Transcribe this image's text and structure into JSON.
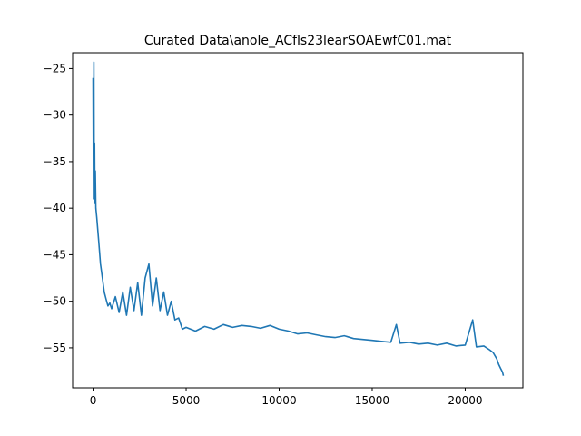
{
  "chart_data": {
    "type": "line",
    "title": "Curated Data\\anole_ACfls23learSOAEwfC01.mat",
    "xlabel": "",
    "ylabel": "",
    "xlim": [
      -1100,
      23100
    ],
    "ylim": [
      -59.3,
      -23.3
    ],
    "grid": false,
    "x_ticks": [
      0,
      5000,
      10000,
      15000,
      20000
    ],
    "x_tick_labels": [
      "0",
      "5000",
      "10000",
      "15000",
      "20000"
    ],
    "y_ticks": [
      -25,
      -30,
      -35,
      -40,
      -45,
      -50,
      -55
    ],
    "y_tick_labels": [
      "−25",
      "−30",
      "−35",
      "−40",
      "−45",
      "−50",
      "−55"
    ],
    "series": [
      {
        "color": "#1f77b4",
        "x": [
          0,
          20,
          40,
          60,
          80,
          100,
          120,
          150,
          200,
          300,
          400,
          500,
          600,
          700,
          800,
          900,
          1000,
          1200,
          1400,
          1600,
          1800,
          2000,
          2200,
          2400,
          2600,
          2800,
          3000,
          3200,
          3400,
          3600,
          3800,
          4000,
          4200,
          4400,
          4600,
          4800,
          5000,
          5500,
          6000,
          6500,
          7000,
          7500,
          8000,
          8500,
          9000,
          9500,
          10000,
          10500,
          11000,
          11500,
          12000,
          12500,
          13000,
          13500,
          14000,
          14500,
          15000,
          15500,
          16000,
          16300,
          16500,
          17000,
          17500,
          18000,
          18500,
          19000,
          19500,
          20000,
          20400,
          20600,
          21000,
          21300,
          21500,
          21700,
          21800,
          21900,
          22000,
          22050
        ],
        "values": [
          -26,
          -39,
          -24.3,
          -38,
          -33,
          -39.5,
          -36,
          -40,
          -41,
          -43.5,
          -46,
          -47.5,
          -49,
          -49.8,
          -50.5,
          -50.2,
          -50.8,
          -49.5,
          -51.2,
          -49,
          -51.5,
          -48.5,
          -51,
          -48,
          -51.5,
          -47.5,
          -46,
          -50.5,
          -47.5,
          -51,
          -49,
          -51.5,
          -50,
          -52,
          -51.8,
          -53,
          -52.8,
          -53.2,
          -52.7,
          -53,
          -52.5,
          -52.8,
          -52.6,
          -52.7,
          -52.9,
          -52.6,
          -53,
          -53.2,
          -53.5,
          -53.4,
          -53.6,
          -53.8,
          -53.9,
          -53.7,
          -54,
          -54.1,
          -54.2,
          -54.3,
          -54.4,
          -52.5,
          -54.5,
          -54.4,
          -54.6,
          -54.5,
          -54.7,
          -54.5,
          -54.8,
          -54.7,
          -52,
          -54.9,
          -54.8,
          -55.2,
          -55.5,
          -56.2,
          -56.8,
          -57.2,
          -57.6,
          -58
        ]
      }
    ]
  }
}
